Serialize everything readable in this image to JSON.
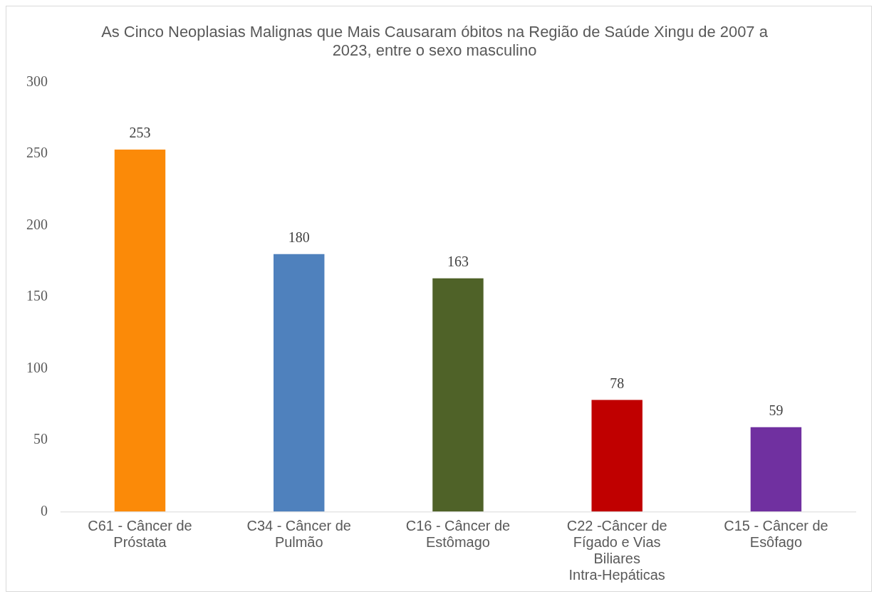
{
  "chart_data": {
    "type": "bar",
    "title": "As Cinco Neoplasias Malignas que Mais Causaram óbitos na Região de Saúde Xingu de 2007 a 2023, entre o sexo masculino",
    "categories": [
      "C61 - Câncer de Próstata",
      "C34 - Câncer de Pulmão",
      "C16 - Câncer de Estômago",
      "C22 -Câncer de Fígado e Vias Biliares Intra-Hepáticas",
      "C15 - Câncer de Esôfago"
    ],
    "values": [
      253,
      180,
      163,
      78,
      59
    ],
    "colors": [
      "#fb8a08",
      "#4f81bd",
      "#4f6228",
      "#c00000",
      "#7030a0"
    ],
    "ylim": [
      0,
      300
    ],
    "yticks": [
      0,
      50,
      100,
      150,
      200,
      250,
      300
    ],
    "grid": false,
    "legend": false,
    "data_labels": true
  }
}
